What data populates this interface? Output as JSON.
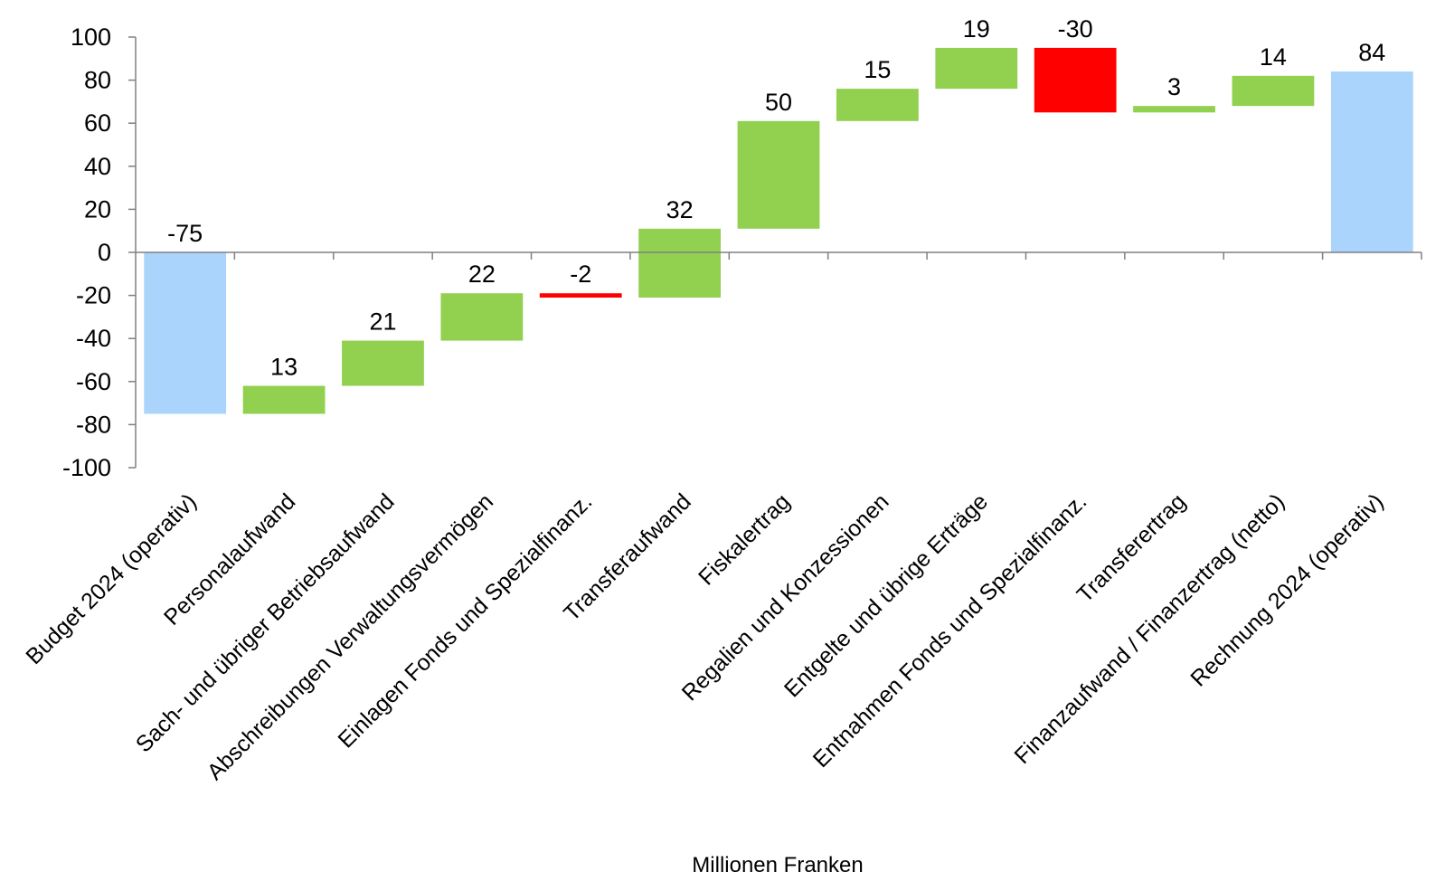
{
  "chart_data": {
    "type": "bar",
    "subtype": "waterfall",
    "xlabel": "Millionen Franken",
    "ylim": [
      -100,
      100
    ],
    "yticks": [
      100,
      80,
      60,
      40,
      20,
      0,
      -20,
      -40,
      -60,
      -80,
      -100
    ],
    "grid": false,
    "legend": "none",
    "colors": {
      "total": "#aad4fb",
      "increase": "#92d050",
      "decrease": "#ff0000"
    },
    "categories": [
      "Budget 2024 (operativ)",
      "Personalaufwand",
      "Sach- und übriger Betriebsaufwand",
      "Abschreibungen Verwaltungsvermögen",
      "Einlagen Fonds und Spezialfinanz.",
      "Transferaufwand",
      "Fiskalertrag",
      "Regalien und Konzessionen",
      "Entgelte und übrige Erträge",
      "Entnahmen Fonds und Spezialfinanz.",
      "Transferertrag",
      "Finanzaufwand / Finanzertrag (netto)",
      "Rechnung 2024 (operativ)"
    ],
    "values": [
      -75,
      13,
      21,
      22,
      -2,
      32,
      50,
      15,
      19,
      -30,
      3,
      14,
      84
    ],
    "labels": [
      "-75",
      "13",
      "21",
      "22",
      "-2",
      "32",
      "50",
      "15",
      "19",
      "-30",
      "3",
      "14",
      "84"
    ],
    "kinds": [
      "total",
      "increase",
      "increase",
      "increase",
      "decrease",
      "increase",
      "increase",
      "increase",
      "increase",
      "decrease",
      "increase",
      "increase",
      "total"
    ]
  }
}
